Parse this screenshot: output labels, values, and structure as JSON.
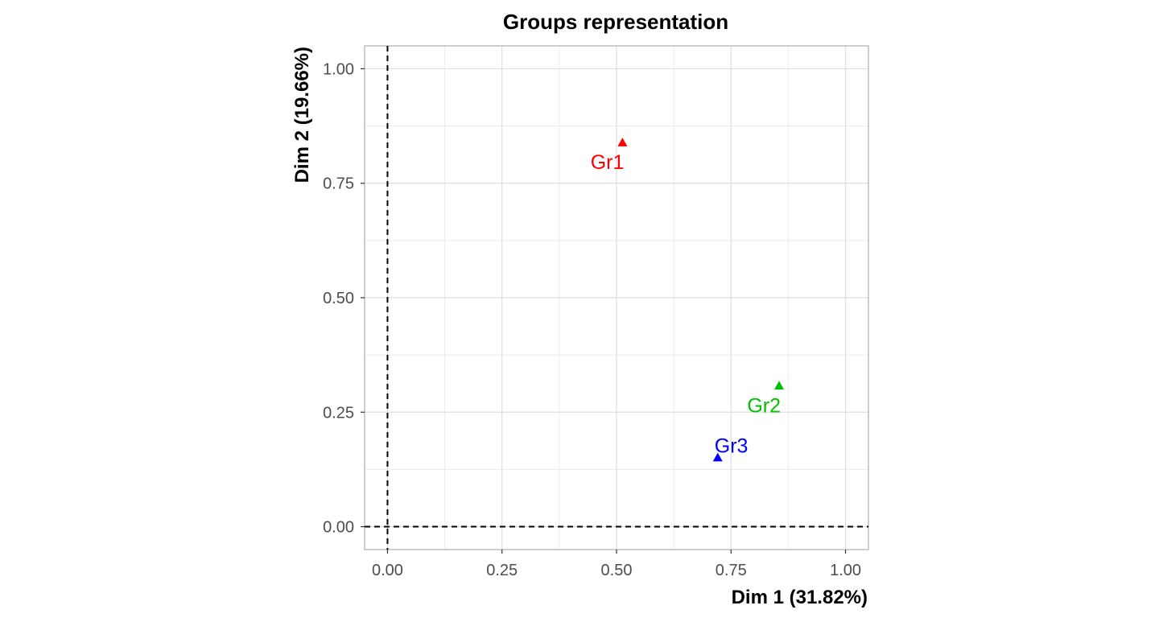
{
  "chart_data": {
    "type": "scatter",
    "title": "Groups representation",
    "xlabel": "Dim 1 (31.82%)",
    "ylabel": "Dim 2 (19.66%)",
    "xlim": [
      -0.05,
      1.05
    ],
    "ylim": [
      -0.05,
      1.05
    ],
    "x_ticks": [
      0.0,
      0.25,
      0.5,
      0.75,
      1.0
    ],
    "y_ticks": [
      0.0,
      0.25,
      0.5,
      0.75,
      1.0
    ],
    "x_tick_labels": [
      "0.00",
      "0.25",
      "0.50",
      "0.75",
      "1.00"
    ],
    "y_tick_labels": [
      "0.00",
      "0.25",
      "0.50",
      "0.75",
      "1.00"
    ],
    "grid": true,
    "reference_lines": {
      "x": 0,
      "y": 0,
      "style": "dashed"
    },
    "points": [
      {
        "label": "Gr1",
        "x": 0.513,
        "y": 0.839,
        "color": "#ff0000",
        "label_pos": "below-left"
      },
      {
        "label": "Gr2",
        "x": 0.855,
        "y": 0.308,
        "color": "#00c000",
        "label_pos": "below-left"
      },
      {
        "label": "Gr3",
        "x": 0.721,
        "y": 0.151,
        "color": "#0000ff",
        "label_pos": "above-right"
      }
    ],
    "marker": "triangle"
  }
}
